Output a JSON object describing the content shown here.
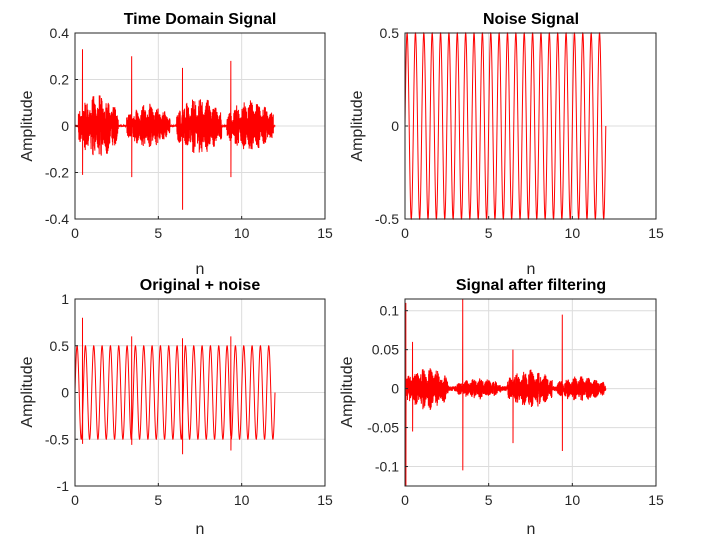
{
  "figure": {
    "background": "#ffffff",
    "line_color": "#ff0000",
    "grid_color": "#dcdcdc",
    "frame_color": "#262626"
  },
  "chart_data": [
    {
      "type": "line",
      "title": "Time Domain Signal",
      "xlabel": "n",
      "ylabel": "Amplitude",
      "xlim": [
        0,
        15
      ],
      "ylim": [
        -0.4,
        0.4
      ],
      "xticks": [
        0,
        5,
        10,
        15
      ],
      "yticks": [
        -0.4,
        -0.2,
        0,
        0.2,
        0.4
      ],
      "xtick_labels": [
        "0",
        "5",
        "10",
        "15"
      ],
      "ytick_labels": [
        "-0.4",
        "-0.2",
        "0",
        "0.2",
        "0.4"
      ],
      "grid": true,
      "series": [
        {
          "color": "#ff0000",
          "description": "speech bursts with silences",
          "x_end": 12,
          "bursts": [
            [
              0.2,
              2.6,
              0.1
            ],
            [
              3.1,
              5.7,
              0.07
            ],
            [
              6.1,
              8.8,
              0.09
            ],
            [
              9.1,
              11.9,
              0.08
            ]
          ],
          "peaks": [
            [
              0.45,
              0.33,
              -0.21
            ],
            [
              3.4,
              0.3,
              -0.22
            ],
            [
              6.45,
              0.25,
              -0.36
            ],
            [
              9.35,
              0.28,
              -0.22
            ]
          ]
        }
      ]
    },
    {
      "type": "line",
      "title": "Noise Signal",
      "xlabel": "n",
      "ylabel": "Amplitude",
      "xlim": [
        0,
        15
      ],
      "ylim": [
        -0.5,
        0.5
      ],
      "xticks": [
        0,
        5,
        10,
        15
      ],
      "yticks": [
        -0.5,
        0,
        0.5
      ],
      "xtick_labels": [
        "0",
        "5",
        "10",
        "15"
      ],
      "ytick_labels": [
        "-0.5",
        "0",
        "0.5"
      ],
      "grid": true,
      "series": [
        {
          "color": "#ff0000",
          "description": "sinusoidal noise",
          "amplitude": 0.5,
          "cycles": 24,
          "x_end": 12
        }
      ]
    },
    {
      "type": "line",
      "title": "Original + noise",
      "xlabel": "n",
      "ylabel": "Amplitude",
      "xlim": [
        0,
        15
      ],
      "ylim": [
        -1,
        1
      ],
      "xticks": [
        0,
        5,
        10,
        15
      ],
      "yticks": [
        -1,
        -0.5,
        0,
        0.5,
        1
      ],
      "xtick_labels": [
        "0",
        "5",
        "10",
        "15"
      ],
      "ytick_labels": [
        "-1",
        "-0.5",
        "0",
        "0.5",
        "1"
      ],
      "grid": true,
      "series": [
        {
          "color": "#ff0000",
          "description": "signal plus noise",
          "amplitude": 0.5,
          "cycles": 24,
          "x_end": 12,
          "peaks": [
            [
              0.45,
              0.8,
              -0.55
            ],
            [
              3.4,
              0.6,
              -0.56
            ],
            [
              6.45,
              0.58,
              -0.66
            ],
            [
              9.35,
              0.6,
              -0.62
            ]
          ]
        }
      ]
    },
    {
      "type": "line",
      "title": "Signal after filtering",
      "xlabel": "n",
      "ylabel": "Amplitude",
      "xlim": [
        0,
        15
      ],
      "ylim": [
        -0.125,
        0.115
      ],
      "xticks": [
        0,
        5,
        10,
        15
      ],
      "yticks": [
        -0.1,
        -0.05,
        0,
        0.05,
        0.1
      ],
      "xtick_labels": [
        "0",
        "5",
        "10",
        "15"
      ],
      "ytick_labels": [
        "-0.1",
        "-0.05",
        "0",
        "0.05",
        "0.1"
      ],
      "grid": true,
      "series": [
        {
          "color": "#ff0000",
          "description": "filtered speech",
          "x_end": 12,
          "bursts": [
            [
              0.05,
              2.6,
              0.02
            ],
            [
              3.1,
              5.7,
              0.01
            ],
            [
              6.1,
              8.8,
              0.018
            ],
            [
              9.1,
              11.9,
              0.012
            ]
          ],
          "peaks": [
            [
              0.05,
              0.11,
              -0.125
            ],
            [
              0.45,
              0.06,
              -0.055
            ],
            [
              3.45,
              0.115,
              -0.105
            ],
            [
              6.45,
              0.05,
              -0.07
            ],
            [
              9.4,
              0.095,
              -0.08
            ]
          ]
        }
      ]
    }
  ]
}
